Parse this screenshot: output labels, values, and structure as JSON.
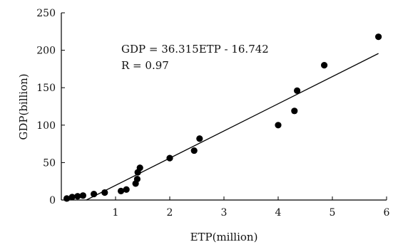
{
  "chart_data": {
    "type": "scatter",
    "xlabel": "ETP(million)",
    "ylabel": "GDP(billion)",
    "xlim": [
      0,
      6
    ],
    "ylim": [
      0,
      250
    ],
    "x_ticks": [
      1,
      2,
      3,
      4,
      5,
      6
    ],
    "y_ticks": [
      0,
      50,
      100,
      150,
      200,
      250
    ],
    "grid": false,
    "color": "#000000",
    "annotations": [
      "GDP = 36.315ETP - 16.742",
      "R = 0.97"
    ],
    "points": [
      {
        "x": 0.1,
        "y": 2
      },
      {
        "x": 0.2,
        "y": 4
      },
      {
        "x": 0.3,
        "y": 5
      },
      {
        "x": 0.4,
        "y": 6
      },
      {
        "x": 0.6,
        "y": 8
      },
      {
        "x": 0.8,
        "y": 10
      },
      {
        "x": 1.1,
        "y": 12
      },
      {
        "x": 1.2,
        "y": 14
      },
      {
        "x": 1.37,
        "y": 22
      },
      {
        "x": 1.4,
        "y": 28
      },
      {
        "x": 1.41,
        "y": 37
      },
      {
        "x": 1.45,
        "y": 43
      },
      {
        "x": 2.0,
        "y": 56
      },
      {
        "x": 2.45,
        "y": 66
      },
      {
        "x": 2.55,
        "y": 82
      },
      {
        "x": 4.0,
        "y": 100
      },
      {
        "x": 4.3,
        "y": 119
      },
      {
        "x": 4.35,
        "y": 146
      },
      {
        "x": 4.85,
        "y": 180
      },
      {
        "x": 5.85,
        "y": 218
      }
    ],
    "fit_line": {
      "slope": 36.315,
      "intercept": -16.742,
      "x_start": 0.461,
      "x_end": 5.85
    }
  }
}
